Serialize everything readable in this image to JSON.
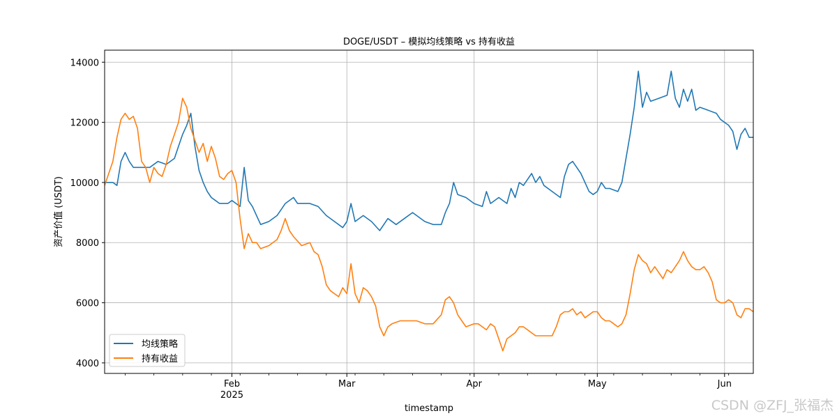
{
  "chart_data": {
    "type": "line",
    "title": "DOGE/USDT – 模拟均线策略 vs 持有收益",
    "xlabel": "timestamp",
    "ylabel": "资产价值 (USDT)",
    "xlim": [
      "2025-01-01",
      "2025-06-08"
    ],
    "ylim": [
      3650,
      14400
    ],
    "grid": true,
    "legend_position": "lower-left",
    "x_ticks": [
      {
        "date": "2025-02-01",
        "label": "Feb",
        "sublabel": "2025"
      },
      {
        "date": "2025-03-01",
        "label": "Mar",
        "sublabel": ""
      },
      {
        "date": "2025-04-01",
        "label": "Apr",
        "sublabel": ""
      },
      {
        "date": "2025-05-01",
        "label": "May",
        "sublabel": ""
      },
      {
        "date": "2025-06-01",
        "label": "Jun",
        "sublabel": ""
      }
    ],
    "y_ticks": [
      4000,
      6000,
      8000,
      10000,
      12000,
      14000
    ],
    "series": [
      {
        "name": "均线策略",
        "color": "#1f77b4",
        "points": [
          [
            "2025-01-01",
            10000
          ],
          [
            "2025-01-03",
            10000
          ],
          [
            "2025-01-04",
            9900
          ],
          [
            "2025-01-05",
            10700
          ],
          [
            "2025-01-06",
            11000
          ],
          [
            "2025-01-07",
            10700
          ],
          [
            "2025-01-08",
            10500
          ],
          [
            "2025-01-10",
            10500
          ],
          [
            "2025-01-12",
            10500
          ],
          [
            "2025-01-14",
            10700
          ],
          [
            "2025-01-16",
            10600
          ],
          [
            "2025-01-18",
            10800
          ],
          [
            "2025-01-19",
            11200
          ],
          [
            "2025-01-20",
            11600
          ],
          [
            "2025-01-21",
            11900
          ],
          [
            "2025-01-22",
            12300
          ],
          [
            "2025-01-23",
            11200
          ],
          [
            "2025-01-24",
            10400
          ],
          [
            "2025-01-25",
            10000
          ],
          [
            "2025-01-26",
            9700
          ],
          [
            "2025-01-27",
            9500
          ],
          [
            "2025-01-28",
            9400
          ],
          [
            "2025-01-29",
            9300
          ],
          [
            "2025-01-31",
            9300
          ],
          [
            "2025-02-01",
            9400
          ],
          [
            "2025-02-02",
            9300
          ],
          [
            "2025-02-03",
            9200
          ],
          [
            "2025-02-04",
            10500
          ],
          [
            "2025-02-05",
            9400
          ],
          [
            "2025-02-06",
            9200
          ],
          [
            "2025-02-07",
            8900
          ],
          [
            "2025-02-08",
            8600
          ],
          [
            "2025-02-10",
            8700
          ],
          [
            "2025-02-12",
            8900
          ],
          [
            "2025-02-13",
            9100
          ],
          [
            "2025-02-14",
            9300
          ],
          [
            "2025-02-16",
            9500
          ],
          [
            "2025-02-17",
            9300
          ],
          [
            "2025-02-20",
            9300
          ],
          [
            "2025-02-22",
            9200
          ],
          [
            "2025-02-24",
            8900
          ],
          [
            "2025-02-26",
            8700
          ],
          [
            "2025-02-28",
            8500
          ],
          [
            "2025-03-01",
            8700
          ],
          [
            "2025-03-02",
            9300
          ],
          [
            "2025-03-03",
            8700
          ],
          [
            "2025-03-05",
            8900
          ],
          [
            "2025-03-07",
            8700
          ],
          [
            "2025-03-09",
            8400
          ],
          [
            "2025-03-11",
            8800
          ],
          [
            "2025-03-13",
            8600
          ],
          [
            "2025-03-15",
            8800
          ],
          [
            "2025-03-17",
            9000
          ],
          [
            "2025-03-20",
            8700
          ],
          [
            "2025-03-22",
            8600
          ],
          [
            "2025-03-24",
            8600
          ],
          [
            "2025-03-25",
            9000
          ],
          [
            "2025-03-26",
            9300
          ],
          [
            "2025-03-27",
            10000
          ],
          [
            "2025-03-28",
            9600
          ],
          [
            "2025-03-30",
            9500
          ],
          [
            "2025-04-01",
            9300
          ],
          [
            "2025-04-03",
            9200
          ],
          [
            "2025-04-04",
            9700
          ],
          [
            "2025-04-05",
            9300
          ],
          [
            "2025-04-07",
            9500
          ],
          [
            "2025-04-09",
            9300
          ],
          [
            "2025-04-10",
            9800
          ],
          [
            "2025-04-11",
            9500
          ],
          [
            "2025-04-12",
            10000
          ],
          [
            "2025-04-13",
            9900
          ],
          [
            "2025-04-15",
            10300
          ],
          [
            "2025-04-16",
            10000
          ],
          [
            "2025-04-17",
            10200
          ],
          [
            "2025-04-18",
            9900
          ],
          [
            "2025-04-20",
            9700
          ],
          [
            "2025-04-22",
            9500
          ],
          [
            "2025-04-23",
            10200
          ],
          [
            "2025-04-24",
            10600
          ],
          [
            "2025-04-25",
            10700
          ],
          [
            "2025-04-26",
            10500
          ],
          [
            "2025-04-27",
            10300
          ],
          [
            "2025-04-28",
            10000
          ],
          [
            "2025-04-29",
            9700
          ],
          [
            "2025-04-30",
            9600
          ],
          [
            "2025-05-01",
            9700
          ],
          [
            "2025-05-02",
            10000
          ],
          [
            "2025-05-03",
            9800
          ],
          [
            "2025-05-04",
            9800
          ],
          [
            "2025-05-06",
            9700
          ],
          [
            "2025-05-07",
            10000
          ],
          [
            "2025-05-08",
            10800
          ],
          [
            "2025-05-09",
            11600
          ],
          [
            "2025-05-10",
            12500
          ],
          [
            "2025-05-11",
            13700
          ],
          [
            "2025-05-12",
            12500
          ],
          [
            "2025-05-13",
            13000
          ],
          [
            "2025-05-14",
            12700
          ],
          [
            "2025-05-16",
            12800
          ],
          [
            "2025-05-18",
            12900
          ],
          [
            "2025-05-19",
            13700
          ],
          [
            "2025-05-20",
            12800
          ],
          [
            "2025-05-21",
            12500
          ],
          [
            "2025-05-22",
            13100
          ],
          [
            "2025-05-23",
            12700
          ],
          [
            "2025-05-24",
            13100
          ],
          [
            "2025-05-25",
            12400
          ],
          [
            "2025-05-26",
            12500
          ],
          [
            "2025-05-28",
            12400
          ],
          [
            "2025-05-30",
            12300
          ],
          [
            "2025-05-31",
            12100
          ],
          [
            "2025-06-01",
            12000
          ],
          [
            "2025-06-02",
            11900
          ],
          [
            "2025-06-03",
            11700
          ],
          [
            "2025-06-04",
            11100
          ],
          [
            "2025-06-05",
            11600
          ],
          [
            "2025-06-06",
            11800
          ],
          [
            "2025-06-07",
            11500
          ],
          [
            "2025-06-08",
            11500
          ]
        ]
      },
      {
        "name": "持有收益",
        "color": "#ff7f0e",
        "points": [
          [
            "2025-01-01",
            9900
          ],
          [
            "2025-01-02",
            10300
          ],
          [
            "2025-01-03",
            10700
          ],
          [
            "2025-01-04",
            11500
          ],
          [
            "2025-01-05",
            12100
          ],
          [
            "2025-01-06",
            12300
          ],
          [
            "2025-01-07",
            12100
          ],
          [
            "2025-01-08",
            12200
          ],
          [
            "2025-01-09",
            11800
          ],
          [
            "2025-01-10",
            10700
          ],
          [
            "2025-01-11",
            10500
          ],
          [
            "2025-01-12",
            10000
          ],
          [
            "2025-01-13",
            10500
          ],
          [
            "2025-01-14",
            10300
          ],
          [
            "2025-01-15",
            10200
          ],
          [
            "2025-01-16",
            10600
          ],
          [
            "2025-01-17",
            11200
          ],
          [
            "2025-01-18",
            11600
          ],
          [
            "2025-01-19",
            12000
          ],
          [
            "2025-01-20",
            12800
          ],
          [
            "2025-01-21",
            12500
          ],
          [
            "2025-01-22",
            11800
          ],
          [
            "2025-01-23",
            11400
          ],
          [
            "2025-01-24",
            11000
          ],
          [
            "2025-01-25",
            11300
          ],
          [
            "2025-01-26",
            10700
          ],
          [
            "2025-01-27",
            11200
          ],
          [
            "2025-01-28",
            10800
          ],
          [
            "2025-01-29",
            10200
          ],
          [
            "2025-01-30",
            10100
          ],
          [
            "2025-01-31",
            10300
          ],
          [
            "2025-02-01",
            10400
          ],
          [
            "2025-02-02",
            10000
          ],
          [
            "2025-02-03",
            8800
          ],
          [
            "2025-02-04",
            7800
          ],
          [
            "2025-02-05",
            8300
          ],
          [
            "2025-02-06",
            8000
          ],
          [
            "2025-02-07",
            8000
          ],
          [
            "2025-02-08",
            7800
          ],
          [
            "2025-02-10",
            7900
          ],
          [
            "2025-02-12",
            8100
          ],
          [
            "2025-02-13",
            8400
          ],
          [
            "2025-02-14",
            8800
          ],
          [
            "2025-02-15",
            8400
          ],
          [
            "2025-02-16",
            8200
          ],
          [
            "2025-02-18",
            7900
          ],
          [
            "2025-02-20",
            8000
          ],
          [
            "2025-02-21",
            7700
          ],
          [
            "2025-02-22",
            7600
          ],
          [
            "2025-02-23",
            7200
          ],
          [
            "2025-02-24",
            6600
          ],
          [
            "2025-02-25",
            6400
          ],
          [
            "2025-02-26",
            6300
          ],
          [
            "2025-02-27",
            6200
          ],
          [
            "2025-02-28",
            6500
          ],
          [
            "2025-03-01",
            6300
          ],
          [
            "2025-03-02",
            7300
          ],
          [
            "2025-03-03",
            6300
          ],
          [
            "2025-03-04",
            6000
          ],
          [
            "2025-03-05",
            6500
          ],
          [
            "2025-03-06",
            6400
          ],
          [
            "2025-03-07",
            6200
          ],
          [
            "2025-03-08",
            5900
          ],
          [
            "2025-03-09",
            5200
          ],
          [
            "2025-03-10",
            4900
          ],
          [
            "2025-03-11",
            5200
          ],
          [
            "2025-03-12",
            5300
          ],
          [
            "2025-03-14",
            5400
          ],
          [
            "2025-03-16",
            5400
          ],
          [
            "2025-03-18",
            5400
          ],
          [
            "2025-03-20",
            5300
          ],
          [
            "2025-03-22",
            5300
          ],
          [
            "2025-03-24",
            5600
          ],
          [
            "2025-03-25",
            6100
          ],
          [
            "2025-03-26",
            6200
          ],
          [
            "2025-03-27",
            6000
          ],
          [
            "2025-03-28",
            5600
          ],
          [
            "2025-03-29",
            5400
          ],
          [
            "2025-03-30",
            5200
          ],
          [
            "2025-04-01",
            5300
          ],
          [
            "2025-04-02",
            5300
          ],
          [
            "2025-04-03",
            5200
          ],
          [
            "2025-04-04",
            5100
          ],
          [
            "2025-04-05",
            5300
          ],
          [
            "2025-04-06",
            5200
          ],
          [
            "2025-04-07",
            4800
          ],
          [
            "2025-04-08",
            4400
          ],
          [
            "2025-04-09",
            4800
          ],
          [
            "2025-04-10",
            4900
          ],
          [
            "2025-04-11",
            5000
          ],
          [
            "2025-04-12",
            5200
          ],
          [
            "2025-04-13",
            5200
          ],
          [
            "2025-04-14",
            5100
          ],
          [
            "2025-04-16",
            4900
          ],
          [
            "2025-04-18",
            4900
          ],
          [
            "2025-04-20",
            4900
          ],
          [
            "2025-04-21",
            5200
          ],
          [
            "2025-04-22",
            5600
          ],
          [
            "2025-04-23",
            5700
          ],
          [
            "2025-04-24",
            5700
          ],
          [
            "2025-04-25",
            5800
          ],
          [
            "2025-04-26",
            5600
          ],
          [
            "2025-04-27",
            5700
          ],
          [
            "2025-04-28",
            5500
          ],
          [
            "2025-04-29",
            5600
          ],
          [
            "2025-04-30",
            5700
          ],
          [
            "2025-05-01",
            5700
          ],
          [
            "2025-05-02",
            5500
          ],
          [
            "2025-05-03",
            5400
          ],
          [
            "2025-05-04",
            5400
          ],
          [
            "2025-05-05",
            5300
          ],
          [
            "2025-05-06",
            5200
          ],
          [
            "2025-05-07",
            5300
          ],
          [
            "2025-05-08",
            5600
          ],
          [
            "2025-05-09",
            6300
          ],
          [
            "2025-05-10",
            7100
          ],
          [
            "2025-05-11",
            7600
          ],
          [
            "2025-05-12",
            7400
          ],
          [
            "2025-05-13",
            7300
          ],
          [
            "2025-05-14",
            7000
          ],
          [
            "2025-05-15",
            7200
          ],
          [
            "2025-05-16",
            7000
          ],
          [
            "2025-05-17",
            6800
          ],
          [
            "2025-05-18",
            7100
          ],
          [
            "2025-05-19",
            7000
          ],
          [
            "2025-05-20",
            7200
          ],
          [
            "2025-05-21",
            7400
          ],
          [
            "2025-05-22",
            7700
          ],
          [
            "2025-05-23",
            7400
          ],
          [
            "2025-05-24",
            7200
          ],
          [
            "2025-05-25",
            7100
          ],
          [
            "2025-05-26",
            7100
          ],
          [
            "2025-05-27",
            7200
          ],
          [
            "2025-05-28",
            7000
          ],
          [
            "2025-05-29",
            6700
          ],
          [
            "2025-05-30",
            6100
          ],
          [
            "2025-05-31",
            6000
          ],
          [
            "2025-06-01",
            6000
          ],
          [
            "2025-06-02",
            6100
          ],
          [
            "2025-06-03",
            6000
          ],
          [
            "2025-06-04",
            5600
          ],
          [
            "2025-06-05",
            5500
          ],
          [
            "2025-06-06",
            5800
          ],
          [
            "2025-06-07",
            5800
          ],
          [
            "2025-06-08",
            5700
          ]
        ]
      }
    ]
  },
  "watermark": "CSDN @ZFJ_张福杰"
}
